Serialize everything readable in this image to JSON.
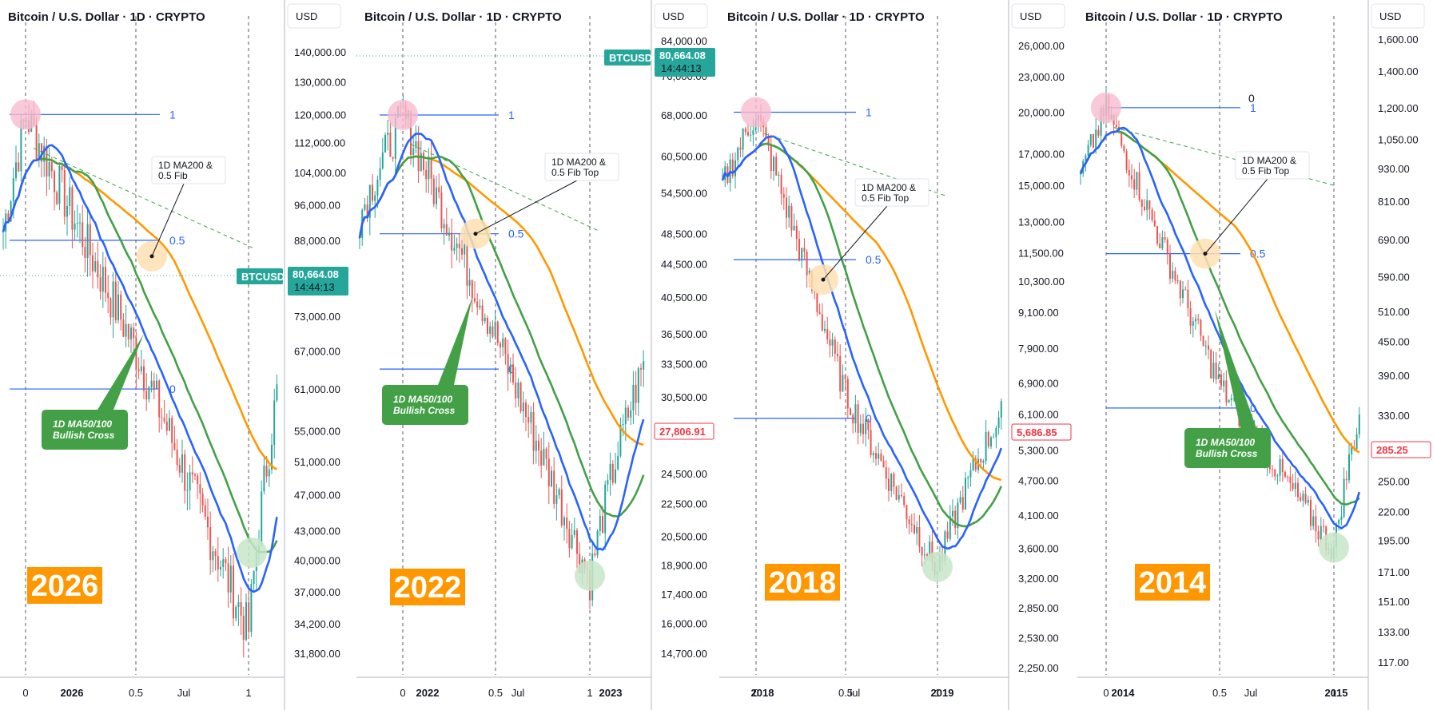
{
  "chart_data": [
    {
      "type": "candlestick",
      "title": "Bitcoin / U.S. Dollar · 1D · CRYPTO",
      "currency": "USD",
      "year_label": "2026",
      "yticks": [
        "140,000.00",
        "130,000.00",
        "120,000.00",
        "112,000.00",
        "104,000.00",
        "96,000.00",
        "88,000.00",
        "80,664.08",
        "73,000.00",
        "67,000.00",
        "61,000.00",
        "55,000.00",
        "51,000.00",
        "47,000.00",
        "43,000.00",
        "40,000.00",
        "37,000.00",
        "34,200.00",
        "31,800.00"
      ],
      "xticks": [
        "0",
        "2026",
        "0.5",
        "Jul",
        "1"
      ],
      "ticker": "BTCUSD",
      "last_price": "80,664.08",
      "countdown": "14:44:13",
      "fib_levels": [
        {
          "level": "1",
          "price": 120000
        },
        {
          "level": "0.5",
          "price": 88000
        },
        {
          "level": "0",
          "price": 61000
        }
      ],
      "callout": [
        "1D MA200 &",
        "0.5 Fib"
      ],
      "cross_label": [
        "1D MA50/100",
        "Bullish Cross"
      ],
      "time_fib": [
        "0",
        "0.5",
        "1"
      ]
    },
    {
      "type": "candlestick",
      "title": "Bitcoin / U.S. Dollar · 1D · CRYPTO",
      "currency": "USD",
      "year_label": "2022",
      "yticks": [
        "84,000.00",
        "76,000.00",
        "68,000.00",
        "60,500.00",
        "54,500.00",
        "48,500.00",
        "44,500.00",
        "40,500.00",
        "36,500.00",
        "33,500.00",
        "30,500.00",
        "27,806.91",
        "24,500.00",
        "22,500.00",
        "20,500.00",
        "18,900.00",
        "17,400.00",
        "16,000.00",
        "14,700.00"
      ],
      "xticks": [
        "0",
        "2022",
        "0.5",
        "Jul",
        "1",
        "2023"
      ],
      "ticker": "BTCUSD",
      "last_price": "80,664.08",
      "countdown": "14:44:13",
      "current_price": "27,806.91",
      "fib_levels": [
        {
          "level": "1",
          "price": 68000
        },
        {
          "level": "0.5",
          "price": 48500
        },
        {
          "level": "0",
          "price": 33000
        }
      ],
      "callout": [
        "1D MA200 &",
        "0.5 Fib Top"
      ],
      "cross_label": [
        "1D MA50/100",
        "Bullish Cross"
      ],
      "time_fib": [
        "0",
        "0.5",
        "1"
      ]
    },
    {
      "type": "candlestick",
      "title": "Bitcoin / U.S. Dollar · 1D · CRYPTO",
      "currency": "USD",
      "year_label": "2018",
      "yticks": [
        "26,000.00",
        "23,000.00",
        "20,000.00",
        "17,000.00",
        "15,000.00",
        "13,000.00",
        "11,500.00",
        "10,300.00",
        "9,100.00",
        "7,900.00",
        "6,900.00",
        "6,100.00",
        "5,686.85",
        "5,300.00",
        "4,700.00",
        "4,100.00",
        "3,600.00",
        "3,200.00",
        "2,850.00",
        "2,530.00",
        "2,250.00"
      ],
      "xticks": [
        "0",
        "2018",
        "0.5",
        "Jul",
        "1",
        "2019"
      ],
      "current_price": "5,686.85",
      "fib_levels": [
        {
          "level": "1",
          "price": 20000
        },
        {
          "level": "0.5",
          "price": 11200
        },
        {
          "level": "0",
          "price": 6000
        }
      ],
      "callout": [
        "1D MA200 &",
        "0.5 Fib Top"
      ],
      "time_fib": [
        "0",
        "0.5",
        "1"
      ]
    },
    {
      "type": "candlestick",
      "title": "Bitcoin / U.S. Dollar · 1D · CRYPTO",
      "currency": "USD",
      "year_label": "2014",
      "yticks": [
        "1,600.00",
        "1,400.00",
        "1,200.00",
        "1,050.00",
        "930.00",
        "810.00",
        "690.00",
        "590.00",
        "510.00",
        "450.00",
        "390.00",
        "330.00",
        "285.25",
        "250.00",
        "220.00",
        "195.00",
        "171.00",
        "151.00",
        "133.00",
        "117.00"
      ],
      "xticks": [
        "0",
        "2014",
        "0.5",
        "Jul",
        "1",
        "2015"
      ],
      "current_price": "285.25",
      "fib_levels": [
        {
          "level": "1",
          "price": 1200
        },
        {
          "level": "0.5",
          "price": 650
        },
        {
          "level": "0",
          "price": 340
        }
      ],
      "fib_zero_label": "0",
      "callout": [
        "1D MA200 &",
        "0.5 Fib Top"
      ],
      "cross_label": [
        "1D MA50/100",
        "Bullish Cross"
      ],
      "time_fib": [
        "0",
        "0.5",
        "1"
      ]
    }
  ],
  "colors": {
    "ma50": "#2962ff",
    "ma100": "#43a047",
    "ma200": "#ff9800",
    "candle_up": "#26a69a",
    "candle_down": "#ef5350",
    "fib": "#2962ff",
    "year_box": "#ff9800",
    "ticker_box": "#26a69a",
    "price_red": "#f23645"
  }
}
